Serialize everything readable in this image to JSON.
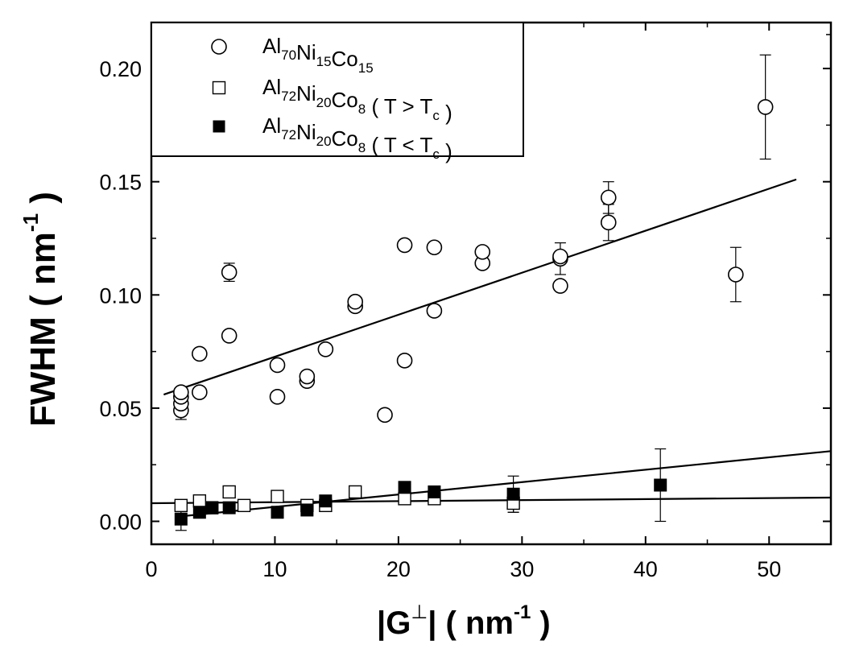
{
  "chart_data": {
    "type": "scatter",
    "title": "",
    "xlabel": {
      "main": "|G",
      "sup_symbol": "⊥",
      "unit_open": "|  ( nm",
      "unit_exp": "-1",
      "unit_close": " )"
    },
    "ylabel": {
      "main": "FWHM  ( nm",
      "unit_exp": "-1",
      "unit_close": " )"
    },
    "xlim": [
      0,
      55
    ],
    "ylim": [
      -0.01,
      0.22
    ],
    "xticks": [
      0,
      10,
      20,
      30,
      40,
      50
    ],
    "xtick_labels": [
      "0",
      "10",
      "20",
      "30",
      "40",
      "50"
    ],
    "yticks": [
      0.0,
      0.05,
      0.1,
      0.15,
      0.2
    ],
    "ytick_labels": [
      "0.00",
      "0.05",
      "0.10",
      "0.15",
      "0.20"
    ],
    "legend_position": "top-left",
    "series": [
      {
        "id": "s1",
        "name": "Al70Ni15Co15",
        "legend": [
          {
            "t": "Al",
            "s": "70"
          },
          {
            "t": "Ni",
            "s": "15"
          },
          {
            "t": "Co",
            "s": "15"
          }
        ],
        "marker": "open-circle",
        "points": [
          [
            2.4,
            0.049
          ],
          [
            2.4,
            0.052
          ],
          [
            2.4,
            0.055
          ],
          [
            2.4,
            0.057
          ],
          [
            3.9,
            0.057
          ],
          [
            3.9,
            0.074
          ],
          [
            6.3,
            0.082
          ],
          [
            6.3,
            0.11
          ],
          [
            10.2,
            0.055
          ],
          [
            10.2,
            0.069
          ],
          [
            12.6,
            0.062
          ],
          [
            12.6,
            0.064
          ],
          [
            14.1,
            0.076
          ],
          [
            16.5,
            0.095
          ],
          [
            16.5,
            0.097
          ],
          [
            18.9,
            0.047
          ],
          [
            20.5,
            0.071
          ],
          [
            20.5,
            0.122
          ],
          [
            22.9,
            0.093
          ],
          [
            22.9,
            0.121
          ],
          [
            26.8,
            0.114
          ],
          [
            26.8,
            0.119
          ],
          [
            33.1,
            0.104
          ],
          [
            33.1,
            0.116
          ],
          [
            33.1,
            0.117
          ],
          [
            37.0,
            0.132
          ],
          [
            37.0,
            0.143
          ],
          [
            47.3,
            0.109
          ],
          [
            49.7,
            0.183
          ]
        ],
        "error_bars": [
          [
            2.4,
            0.049,
            0.004
          ],
          [
            6.3,
            0.11,
            0.004
          ],
          [
            33.1,
            0.116,
            0.007
          ],
          [
            37.0,
            0.143,
            0.007
          ],
          [
            37.0,
            0.132,
            0.008
          ],
          [
            47.3,
            0.109,
            0.012
          ],
          [
            49.7,
            0.183,
            0.023
          ]
        ],
        "fit": {
          "x": [
            1.0,
            52.2
          ],
          "y": [
            0.056,
            0.151
          ]
        }
      },
      {
        "id": "s2",
        "name": "Al72Ni20Co8 ( T > Tc )",
        "legend": [
          {
            "t": "Al",
            "s": "72"
          },
          {
            "t": "Ni",
            "s": "20"
          },
          {
            "t": "Co",
            "s": "8"
          },
          {
            "t": " ( T > T",
            "s": "c"
          },
          {
            "t": " )",
            "s": ""
          }
        ],
        "marker": "open-square",
        "points": [
          [
            2.4,
            0.007
          ],
          [
            3.9,
            0.009
          ],
          [
            4.9,
            0.006
          ],
          [
            6.3,
            0.013
          ],
          [
            7.5,
            0.007
          ],
          [
            10.2,
            0.011
          ],
          [
            12.6,
            0.007
          ],
          [
            14.1,
            0.007
          ],
          [
            16.5,
            0.013
          ],
          [
            20.5,
            0.01
          ],
          [
            22.9,
            0.01
          ],
          [
            29.3,
            0.008
          ]
        ],
        "error_bars": [
          [
            29.3,
            0.008,
            0.004
          ]
        ],
        "fit": {
          "x": [
            0.0,
            55.0
          ],
          "y": [
            0.008,
            0.0105
          ]
        }
      },
      {
        "id": "s3",
        "name": "Al72Ni20Co8 ( T < Tc )",
        "legend": [
          {
            "t": "Al",
            "s": "72"
          },
          {
            "t": "Ni",
            "s": "20"
          },
          {
            "t": "Co",
            "s": "8"
          },
          {
            "t": " ( T < T",
            "s": "c"
          },
          {
            "t": " )",
            "s": ""
          }
        ],
        "marker": "filled-square",
        "points": [
          [
            2.4,
            0.001
          ],
          [
            3.9,
            0.004
          ],
          [
            4.9,
            0.006
          ],
          [
            6.3,
            0.006
          ],
          [
            10.2,
            0.004
          ],
          [
            12.6,
            0.005
          ],
          [
            14.1,
            0.009
          ],
          [
            20.5,
            0.015
          ],
          [
            22.9,
            0.013
          ],
          [
            29.3,
            0.012
          ],
          [
            41.2,
            0.016
          ]
        ],
        "error_bars": [
          [
            2.4,
            0.001,
            0.005
          ],
          [
            20.5,
            0.015,
            0.002
          ],
          [
            29.3,
            0.012,
            0.008
          ],
          [
            41.2,
            0.016,
            0.016
          ]
        ],
        "fit": {
          "x": [
            2.0,
            55.0
          ],
          "y": [
            0.002,
            0.031
          ]
        }
      }
    ]
  }
}
